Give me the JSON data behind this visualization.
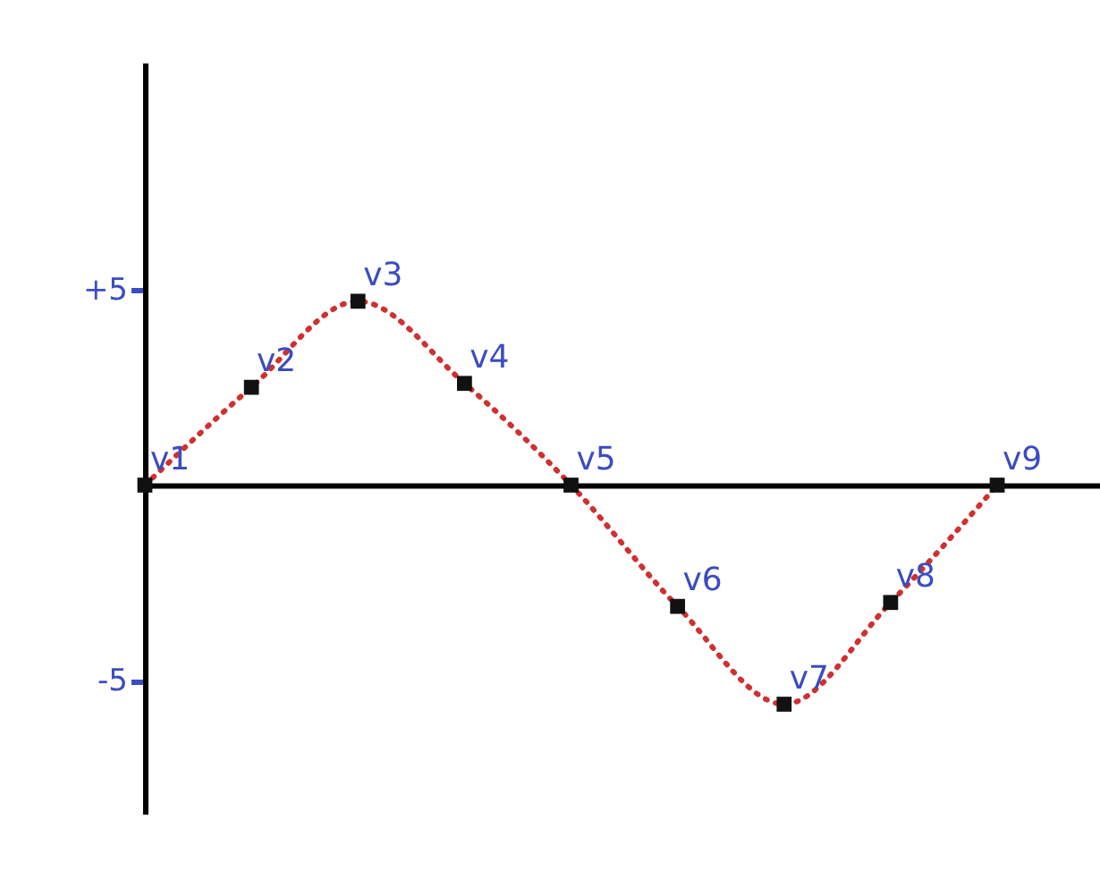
{
  "chart_data": {
    "type": "line",
    "categories": [
      null,
      null,
      null,
      null,
      null,
      null,
      null,
      null,
      null
    ],
    "ylim": [
      -8.4,
      10.8
    ],
    "yticks": [
      {
        "value": 5,
        "label": "+5"
      },
      {
        "value": -5,
        "label": "-5"
      }
    ],
    "tick_labels": "y",
    "grid": false,
    "series": [
      {
        "color": "#d03030",
        "line_style": "dotted",
        "marker": "none",
        "values": [
          0,
          2.5,
          4.7,
          2.6,
          0,
          -3.1,
          -5.6,
          -3.0,
          0
        ]
      },
      {
        "type": "scatter",
        "color": "#111111",
        "marker": "square",
        "values": [
          0,
          2.5,
          4.7,
          2.6,
          0,
          -3.1,
          -5.6,
          -3.0,
          0
        ],
        "value_labels": [
          "v1",
          "v2",
          "v3",
          "v4",
          "v5",
          "v6",
          "v7",
          "v8",
          "v9"
        ]
      }
    ]
  }
}
